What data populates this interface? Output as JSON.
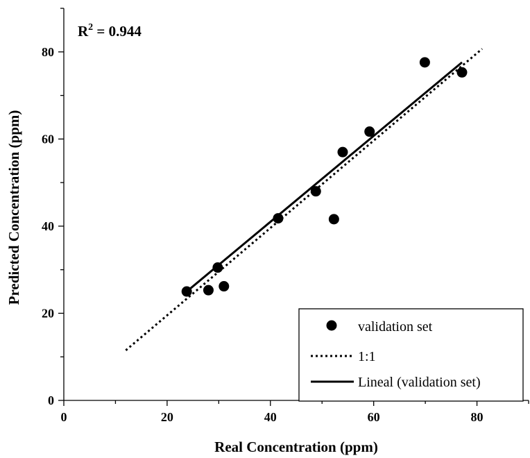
{
  "chart_data": {
    "type": "scatter",
    "xlabel": "Real Concentration (ppm)",
    "ylabel": "Predicted Concentration (ppm)",
    "xlim": [
      0,
      90
    ],
    "ylim": [
      0,
      90
    ],
    "xticks": [
      0,
      20,
      40,
      60,
      80
    ],
    "yticks": [
      0,
      20,
      40,
      60,
      80
    ],
    "annotation": {
      "prefix": "R",
      "sup": "2",
      "eq": " = ",
      "value": "0.944"
    },
    "legend_position": "bottom-right",
    "series": [
      {
        "name": "validation set",
        "kind": "points",
        "x": [
          23.8,
          28.0,
          29.8,
          31.0,
          41.5,
          48.8,
          52.3,
          54.0,
          59.2,
          69.9,
          77.1
        ],
        "y": [
          25.0,
          25.3,
          30.5,
          26.2,
          41.8,
          48.0,
          41.6,
          57.0,
          61.7,
          77.6,
          75.3
        ]
      },
      {
        "name": "1:1",
        "kind": "dotted-line",
        "x": [
          12,
          81
        ],
        "y": [
          11.5,
          80.7
        ]
      },
      {
        "name": "Lineal (validation set)",
        "kind": "solid-line",
        "x": [
          23.8,
          77.1
        ],
        "y": [
          25.0,
          77.6
        ]
      }
    ],
    "colors": {
      "ink": "#000000"
    }
  }
}
